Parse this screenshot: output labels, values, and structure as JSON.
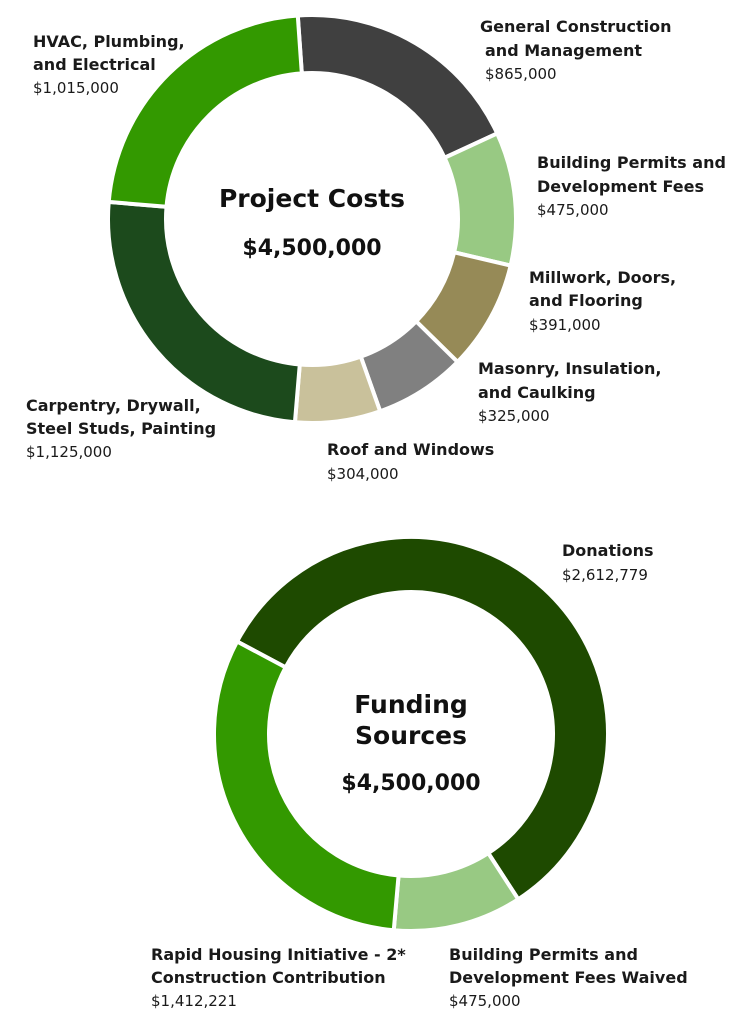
{
  "chart_data": [
    {
      "type": "pie",
      "title": "Project Costs",
      "total_label": "$4,500,000",
      "slices": [
        {
          "label": [
            "General Construction",
            "and Management"
          ],
          "value_label": "$865,000",
          "value": 865000,
          "color": "#404040"
        },
        {
          "label": [
            "Building Permits and",
            "Development Fees"
          ],
          "value_label": "$475,000",
          "value": 475000,
          "color": "#98c983"
        },
        {
          "label": [
            "Millwork, Doors,",
            "and Flooring"
          ],
          "value_label": "$391,000",
          "value": 391000,
          "color": "#968a57"
        },
        {
          "label": [
            "Masonry, Insulation,",
            "and Caulking"
          ],
          "value_label": "$325,000",
          "value": 325000,
          "color": "#808080"
        },
        {
          "label": [
            "Roof and Windows"
          ],
          "value_label": "$304,000",
          "value": 304000,
          "color": "#c9c19b"
        },
        {
          "label": [
            "Carpentry, Drywall,",
            "Steel Studs, Painting"
          ],
          "value_label": "$1,125,000",
          "value": 1125000,
          "color": "#1c4a1c"
        },
        {
          "label": [
            "HVAC, Plumbing,",
            "and Electrical"
          ],
          "value_label": "$1,015,000",
          "value": 1015000,
          "color": "#339900"
        }
      ]
    },
    {
      "type": "pie",
      "title": [
        "Funding",
        "Sources"
      ],
      "total_label": "$4,500,000",
      "slices": [
        {
          "label": [
            "Donations"
          ],
          "value_label": "$2,612,779",
          "value": 2612779,
          "color": "#1e4a00"
        },
        {
          "label": [
            "Building Permits and",
            "Development Fees Waived"
          ],
          "value_label": "$475,000",
          "value": 475000,
          "color": "#98c983"
        },
        {
          "label": [
            "Rapid Housing Initiative - 2*",
            "Construction Contribution"
          ],
          "value_label": "$1,412,221",
          "value": 1412221,
          "color": "#339900"
        }
      ]
    }
  ]
}
